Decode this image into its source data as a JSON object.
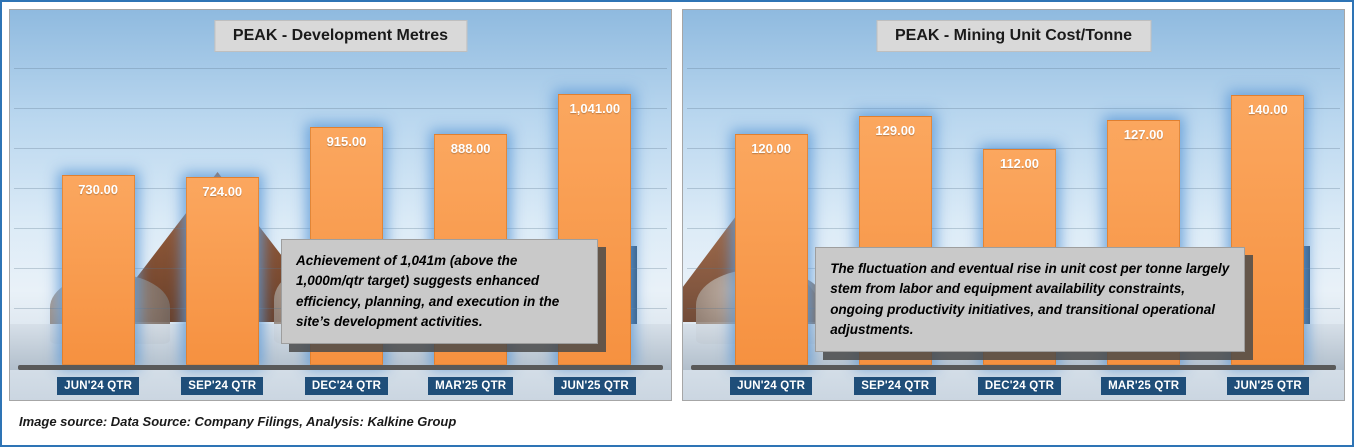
{
  "page": {
    "caption": "Image source: Data Source: Company Filings, Analysis: Kalkine Group"
  },
  "colors": {
    "bar_fill": "#F79646",
    "bar_glow": "#5B9BD5",
    "axis_label_bg": "#1F4E79",
    "title_bg": "#D9D9D9",
    "annotation_bg": "#C9C9C9",
    "outer_border": "#2E74B5",
    "axis_line": "#595959"
  },
  "chart_data": [
    {
      "type": "bar",
      "title": "PEAK - Development Metres",
      "categories": [
        "JUN'24 QTR",
        "SEP'24 QTR",
        "DEC'24 QTR",
        "MAR'25 QTR",
        "JUN'25 QTR"
      ],
      "values": [
        730,
        724,
        915,
        888,
        1041
      ],
      "value_labels": [
        "730.00",
        "724.00",
        "915.00",
        "888.00",
        "1,041.00"
      ],
      "ylim": [
        0,
        1150
      ],
      "xlabel": "",
      "ylabel": "",
      "grid": true,
      "legend": "none",
      "annotation": "Achievement of 1,041m (above the 1,000m/qtr target) suggests enhanced efficiency, planning, and execution in the site’s development activities."
    },
    {
      "type": "bar",
      "title": "PEAK - Mining Unit Cost/Tonne",
      "categories": [
        "JUN'24 QTR",
        "SEP'24 QTR",
        "DEC'24 QTR",
        "MAR'25 QTR",
        "JUN'25 QTR"
      ],
      "values": [
        120,
        129,
        112,
        127,
        140
      ],
      "value_labels": [
        "120.00",
        "129.00",
        "112.00",
        "127.00",
        "140.00"
      ],
      "ylim": [
        0,
        155
      ],
      "xlabel": "",
      "ylabel": "",
      "grid": true,
      "legend": "none",
      "annotation": "The fluctuation and eventual rise in unit cost per tonne largely stem from labor and equipment availability constraints, ongoing productivity initiatives, and transitional operational adjustments."
    }
  ]
}
